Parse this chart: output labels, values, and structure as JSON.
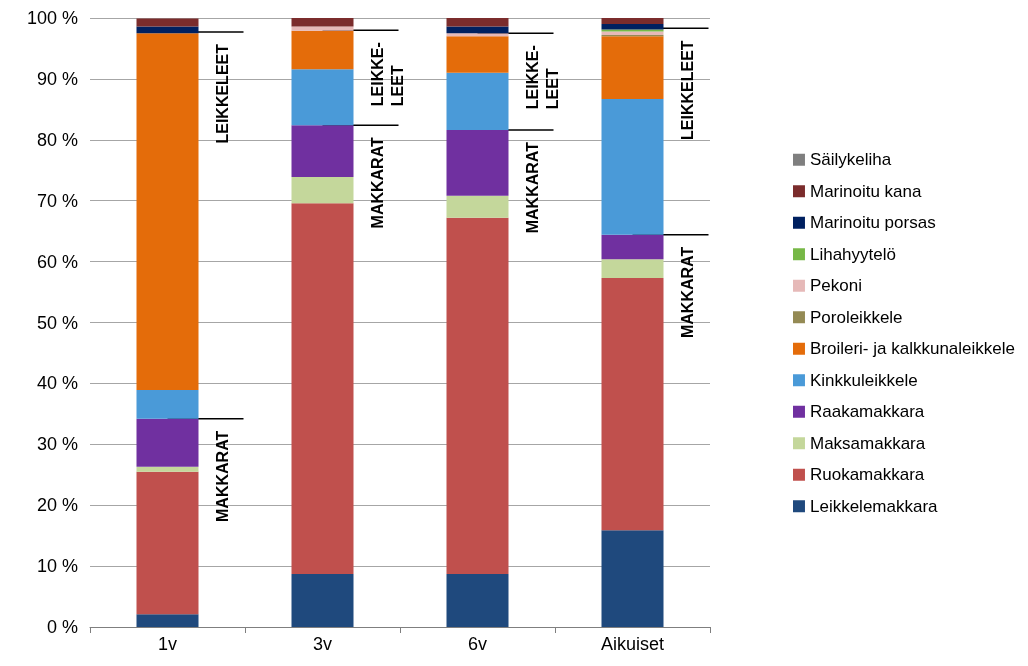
{
  "chart_data": {
    "type": "bar",
    "stacked": true,
    "categories": [
      "1v",
      "3v",
      "6v",
      "Aikuiset"
    ],
    "series": [
      {
        "name": "Leikkelemakkara",
        "color": "#1f497d",
        "values": [
          2.1,
          8.7,
          8.7,
          15.9
        ]
      },
      {
        "name": "Ruokamakkara",
        "color": "#c0504d",
        "values": [
          23.4,
          60.9,
          58.5,
          41.4
        ]
      },
      {
        "name": "Maksamakkara",
        "color": "#c4d79b",
        "values": [
          0.8,
          4.3,
          3.6,
          3.1
        ]
      },
      {
        "name": "Raakamakkara",
        "color": "#7030a0",
        "values": [
          7.9,
          8.5,
          10.8,
          4.0
        ]
      },
      {
        "name": "Kinkkuleikkele",
        "color": "#4a9ad8",
        "values": [
          4.7,
          9.2,
          9.4,
          22.3
        ]
      },
      {
        "name": "Broileri- ja kalkkunaleikkele",
        "color": "#e46c0a",
        "values": [
          58.6,
          6.3,
          6.0,
          10.3
        ]
      },
      {
        "name": "Poroleikkele",
        "color": "#948a54",
        "values": [
          0,
          0,
          0,
          0.2
        ]
      },
      {
        "name": "Pekoni",
        "color": "#e6b9b8",
        "values": [
          0,
          0.7,
          0.5,
          0.6
        ]
      },
      {
        "name": "Lihahyytelö",
        "color": "#77b847",
        "values": [
          0,
          0,
          0,
          0.3
        ]
      },
      {
        "name": "Marinoitu porsas",
        "color": "#002060",
        "values": [
          1.1,
          0,
          1.1,
          0.9
        ]
      },
      {
        "name": "Marinoitu kana",
        "color": "#7b2c2c",
        "values": [
          1.3,
          1.4,
          1.4,
          1.0
        ]
      },
      {
        "name": "Säilykeliha",
        "color": "#7f7f7f",
        "values": [
          0,
          0,
          0,
          0
        ]
      }
    ],
    "ylim": [
      0,
      100
    ],
    "yticks": [
      {
        "value": 0,
        "label": "0 %"
      },
      {
        "value": 10,
        "label": "10 %"
      },
      {
        "value": 20,
        "label": "20 %"
      },
      {
        "value": 30,
        "label": "30 %"
      },
      {
        "value": 40,
        "label": "40 %"
      },
      {
        "value": 50,
        "label": "50 %"
      },
      {
        "value": 60,
        "label": "60 %"
      },
      {
        "value": 70,
        "label": "70 %"
      },
      {
        "value": 80,
        "label": "80 %"
      },
      {
        "value": 90,
        "label": "90 %"
      },
      {
        "value": 100,
        "label": "100 %"
      }
    ],
    "grid": "y",
    "legend": "right",
    "annotations": [
      {
        "text": "LEIKKELEET",
        "x": "1v",
        "y": 97.7
      },
      {
        "text": "MAKKARAT",
        "x": "1v",
        "y": 34.2
      },
      {
        "text": "LEIKKE-\nLEET",
        "x": "3v",
        "y": 98
      },
      {
        "text": "MAKKARAT",
        "x": "3v",
        "y": 82.4
      },
      {
        "text": "LEIKKE-\nLEET",
        "x": "6v",
        "y": 97.5
      },
      {
        "text": "MAKKARAT",
        "x": "6v",
        "y": 81.6
      },
      {
        "text": "LEIKKELEET",
        "x": "Aikuiset",
        "y": 98.3
      },
      {
        "text": "MAKKARAT",
        "x": "Aikuiset",
        "y": 64.4
      }
    ]
  }
}
